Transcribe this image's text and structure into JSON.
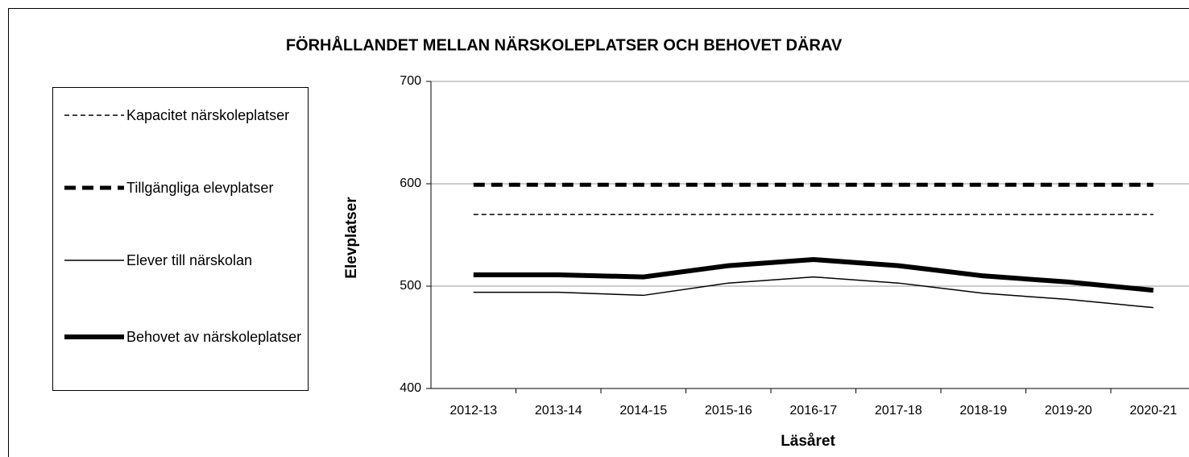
{
  "chart_data": {
    "type": "line",
    "title": "FÖRHÅLLANDET MELLAN NÄRSKOLEPLATSER OCH BEHOVET DÄRAV",
    "y_label": "Elevplatser",
    "x_label": "Läsåret",
    "categories": [
      "2012-13",
      "2013-14",
      "2014-15",
      "2015-16",
      "2016-17",
      "2017-18",
      "2018-19",
      "2019-20",
      "2020-21"
    ],
    "series": [
      {
        "name": "Kapacitet närskoleplatser",
        "color": "#000000",
        "line_width": 1.5,
        "dash": "6 4",
        "values": [
          570,
          570,
          570,
          570,
          570,
          570,
          570,
          570,
          570
        ]
      },
      {
        "name": "Tillgängliga elevplatser",
        "color": "#000000",
        "line_width": 5,
        "dash": "14 8",
        "values": [
          599,
          599,
          599,
          599,
          599,
          599,
          599,
          599,
          599
        ]
      },
      {
        "name": "Elever till närskolan",
        "color": "#000000",
        "line_width": 1.5,
        "dash": "none",
        "values": [
          494,
          494,
          491,
          503,
          509,
          503,
          493,
          487,
          479
        ]
      },
      {
        "name": "Behovet av närskoleplatser",
        "color": "#000000",
        "line_width": 6,
        "dash": "none",
        "values": [
          511,
          511,
          509,
          520,
          526,
          520,
          510,
          504,
          496
        ]
      }
    ],
    "ylim": [
      400,
      700
    ],
    "yticks": [
      400,
      500,
      600,
      700
    ],
    "grid": true
  }
}
